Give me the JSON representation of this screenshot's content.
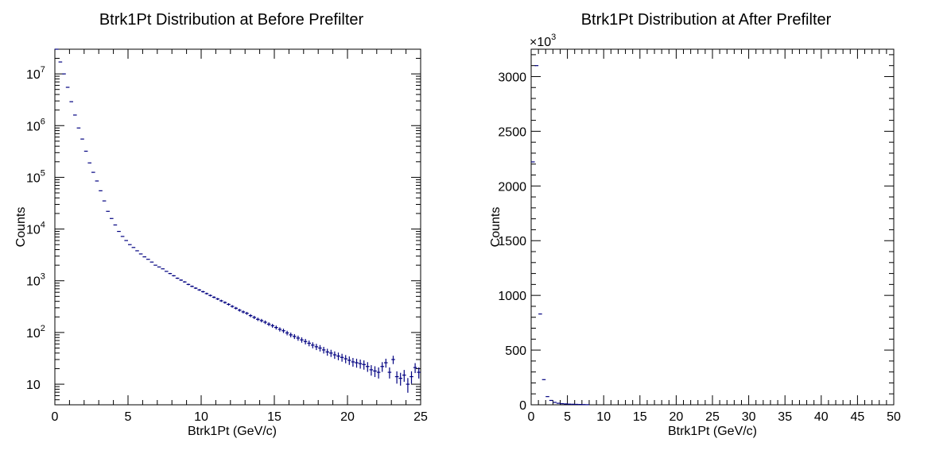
{
  "chart_data": [
    {
      "type": "histogram",
      "title": "Btrk1Pt Distribution at Before Prefilter",
      "xlabel": "Btrk1Pt (GeV/c)",
      "ylabel": "Counts",
      "xlim": [
        0,
        25
      ],
      "ylim": [
        4,
        30000000
      ],
      "yscale": "log",
      "bin_width": 0.25,
      "xticks": [
        0,
        5,
        10,
        15,
        20,
        25
      ],
      "xtick_labels": [
        "0",
        "5",
        "10",
        "15",
        "20",
        "25"
      ],
      "yticks": [
        10,
        100,
        1000,
        10000,
        100000,
        1000000,
        10000000
      ],
      "ytick_labels": [
        {
          "base": "10",
          "exp": ""
        },
        {
          "base": "10",
          "exp": "2"
        },
        {
          "base": "10",
          "exp": "3"
        },
        {
          "base": "10",
          "exp": "4"
        },
        {
          "base": "10",
          "exp": "5"
        },
        {
          "base": "10",
          "exp": "6"
        },
        {
          "base": "10",
          "exp": "7"
        }
      ],
      "color": "#000080",
      "x": [
        0.125,
        0.375,
        0.625,
        0.875,
        1.125,
        1.375,
        1.625,
        1.875,
        2.125,
        2.375,
        2.625,
        2.875,
        3.125,
        3.375,
        3.625,
        3.875,
        4.125,
        4.375,
        4.625,
        4.875,
        5.125,
        5.375,
        5.625,
        5.875,
        6.125,
        6.375,
        6.625,
        6.875,
        7.125,
        7.375,
        7.625,
        7.875,
        8.125,
        8.375,
        8.625,
        8.875,
        9.125,
        9.375,
        9.625,
        9.875,
        10.125,
        10.375,
        10.625,
        10.875,
        11.125,
        11.375,
        11.625,
        11.875,
        12.125,
        12.375,
        12.625,
        12.875,
        13.125,
        13.375,
        13.625,
        13.875,
        14.125,
        14.375,
        14.625,
        14.875,
        15.125,
        15.375,
        15.625,
        15.875,
        16.125,
        16.375,
        16.625,
        16.875,
        17.125,
        17.375,
        17.625,
        17.875,
        18.125,
        18.375,
        18.625,
        18.875,
        19.125,
        19.375,
        19.625,
        19.875,
        20.125,
        20.375,
        20.625,
        20.875,
        21.125,
        21.375,
        21.625,
        21.875,
        22.125,
        22.375,
        22.625,
        22.875,
        23.125,
        23.375,
        23.625,
        23.875,
        24.125,
        24.375,
        24.625,
        24.875
      ],
      "values": [
        30000000,
        17000000,
        10000000,
        5500000,
        2900000,
        1600000,
        900000,
        550000,
        320000,
        190000,
        125000,
        85000,
        55000,
        35000,
        22000,
        16000,
        12000,
        9000,
        7200,
        6000,
        5000,
        4400,
        3800,
        3300,
        2900,
        2600,
        2300,
        2000,
        1850,
        1700,
        1520,
        1380,
        1250,
        1120,
        1030,
        950,
        850,
        780,
        720,
        665,
        615,
        565,
        520,
        480,
        445,
        410,
        380,
        350,
        320,
        295,
        270,
        250,
        235,
        212,
        196,
        180,
        170,
        158,
        145,
        135,
        125,
        115,
        108,
        98,
        90,
        84,
        78,
        72,
        67,
        62,
        57,
        53,
        50,
        46,
        42,
        40,
        37,
        35,
        33,
        31,
        29,
        27,
        26,
        25,
        24,
        22,
        19,
        18,
        17,
        22,
        26,
        17,
        30,
        14,
        13,
        15,
        10,
        14,
        21,
        17
      ]
    },
    {
      "type": "histogram",
      "title": "Btrk1Pt Distribution at After Prefilter",
      "xlabel": "Btrk1Pt (GeV/c)",
      "ylabel": "Counts",
      "xlim": [
        0,
        50
      ],
      "ylim": [
        0,
        3250
      ],
      "yscale": "linear",
      "y_multiplier": "×10",
      "y_multiplier_exp": "3",
      "bin_width": 0.5,
      "xticks": [
        0,
        5,
        10,
        15,
        20,
        25,
        30,
        35,
        40,
        45,
        50
      ],
      "xtick_labels": [
        "0",
        "5",
        "10",
        "15",
        "20",
        "25",
        "30",
        "35",
        "40",
        "45",
        "50"
      ],
      "yticks": [
        0,
        500,
        1000,
        1500,
        2000,
        2500,
        3000
      ],
      "ytick_labels": [
        "0",
        "500",
        "1000",
        "1500",
        "2000",
        "2500",
        "3000"
      ],
      "color": "#000080",
      "x": [
        0.25,
        0.75,
        1.25,
        1.75,
        2.25,
        2.75,
        3.25,
        3.75,
        4.25,
        4.75,
        5.25,
        5.75,
        6.25,
        6.75,
        7.25,
        7.75
      ],
      "values": [
        2220,
        3100,
        830,
        230,
        75,
        40,
        22,
        14,
        10,
        8,
        6,
        5,
        4,
        3,
        2,
        1
      ]
    }
  ]
}
